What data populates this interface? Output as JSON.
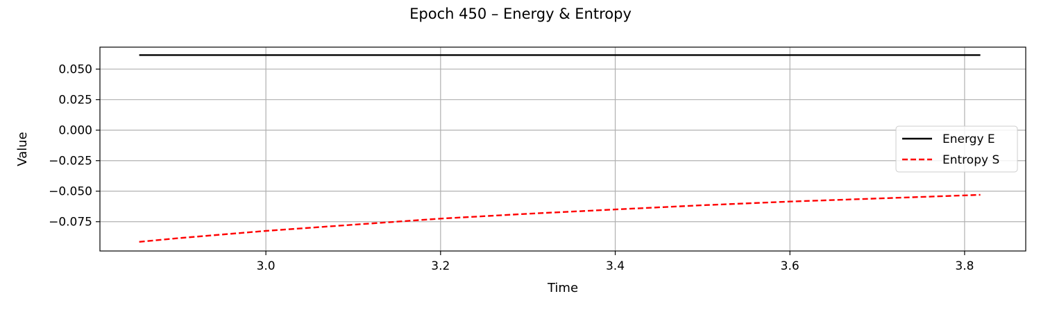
{
  "chart_data": {
    "type": "line",
    "title": "Epoch 450 – Energy & Entropy",
    "xlabel": "Time",
    "ylabel": "Value",
    "xlim": [
      2.81,
      3.87
    ],
    "ylim": [
      -0.099,
      0.068
    ],
    "x_ticks": [
      3.0,
      3.2,
      3.4,
      3.6,
      3.8
    ],
    "x_tick_labels": [
      "3.0",
      "3.2",
      "3.4",
      "3.6",
      "3.8"
    ],
    "y_ticks": [
      0.05,
      0.025,
      0.0,
      -0.025,
      -0.05,
      -0.075
    ],
    "y_tick_labels": [
      "0.050",
      "0.025",
      "0.000",
      "−0.025",
      "−0.050",
      "−0.075"
    ],
    "grid": true,
    "legend_position": "center-right",
    "series": [
      {
        "name": "Energy E",
        "color": "#000000",
        "style": "solid",
        "x": [
          2.855,
          3.0,
          3.2,
          3.4,
          3.6,
          3.818
        ],
        "y": [
          0.0615,
          0.0615,
          0.0615,
          0.0615,
          0.0615,
          0.0615
        ]
      },
      {
        "name": "Entropy S",
        "color": "#ff0000",
        "style": "dashed",
        "x": [
          2.855,
          2.9,
          3.0,
          3.1,
          3.2,
          3.3,
          3.4,
          3.5,
          3.6,
          3.7,
          3.818
        ],
        "y": [
          -0.0915,
          -0.0885,
          -0.0825,
          -0.0775,
          -0.0725,
          -0.0685,
          -0.065,
          -0.0615,
          -0.0585,
          -0.056,
          -0.053
        ]
      }
    ]
  }
}
